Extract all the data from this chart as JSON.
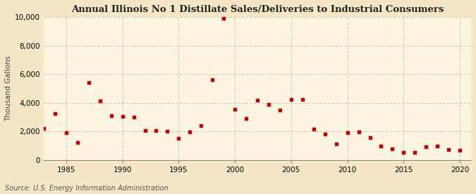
{
  "title": "Annual Illinois No 1 Distillate Sales/Deliveries to Industrial Consumers",
  "ylabel": "Thousand Gallons",
  "source": "Source: U.S. Energy Information Administration",
  "background_color": "#f5e6c8",
  "plot_background_color": "#fdf5e0",
  "marker_color": "#cc0000",
  "grid_color": "#c8b89a",
  "years": [
    1983,
    1984,
    1985,
    1986,
    1987,
    1988,
    1989,
    1990,
    1991,
    1992,
    1993,
    1994,
    1995,
    1996,
    1997,
    1998,
    1999,
    2000,
    2001,
    2002,
    2003,
    2004,
    2005,
    2006,
    2007,
    2008,
    2009,
    2010,
    2011,
    2012,
    2013,
    2014,
    2015,
    2016,
    2017,
    2018,
    2019,
    2020
  ],
  "values": [
    2200,
    3250,
    1900,
    1250,
    5400,
    4150,
    3100,
    3050,
    3000,
    2050,
    2050,
    2000,
    1550,
    1950,
    2400,
    5600,
    9900,
    3550,
    2900,
    4200,
    3900,
    3500,
    4250,
    4250,
    2150,
    1800,
    1150,
    1900,
    1950,
    1600,
    1000,
    800,
    550,
    550,
    950,
    1000,
    750,
    700
  ],
  "xlim": [
    1983,
    2021
  ],
  "ylim": [
    0,
    10000
  ],
  "yticks": [
    0,
    2000,
    4000,
    6000,
    8000,
    10000
  ],
  "xticks": [
    1985,
    1990,
    1995,
    2000,
    2005,
    2010,
    2015,
    2020
  ],
  "title_fontsize": 9.5,
  "axis_fontsize": 7.5,
  "tick_fontsize": 7.5,
  "source_fontsize": 7
}
